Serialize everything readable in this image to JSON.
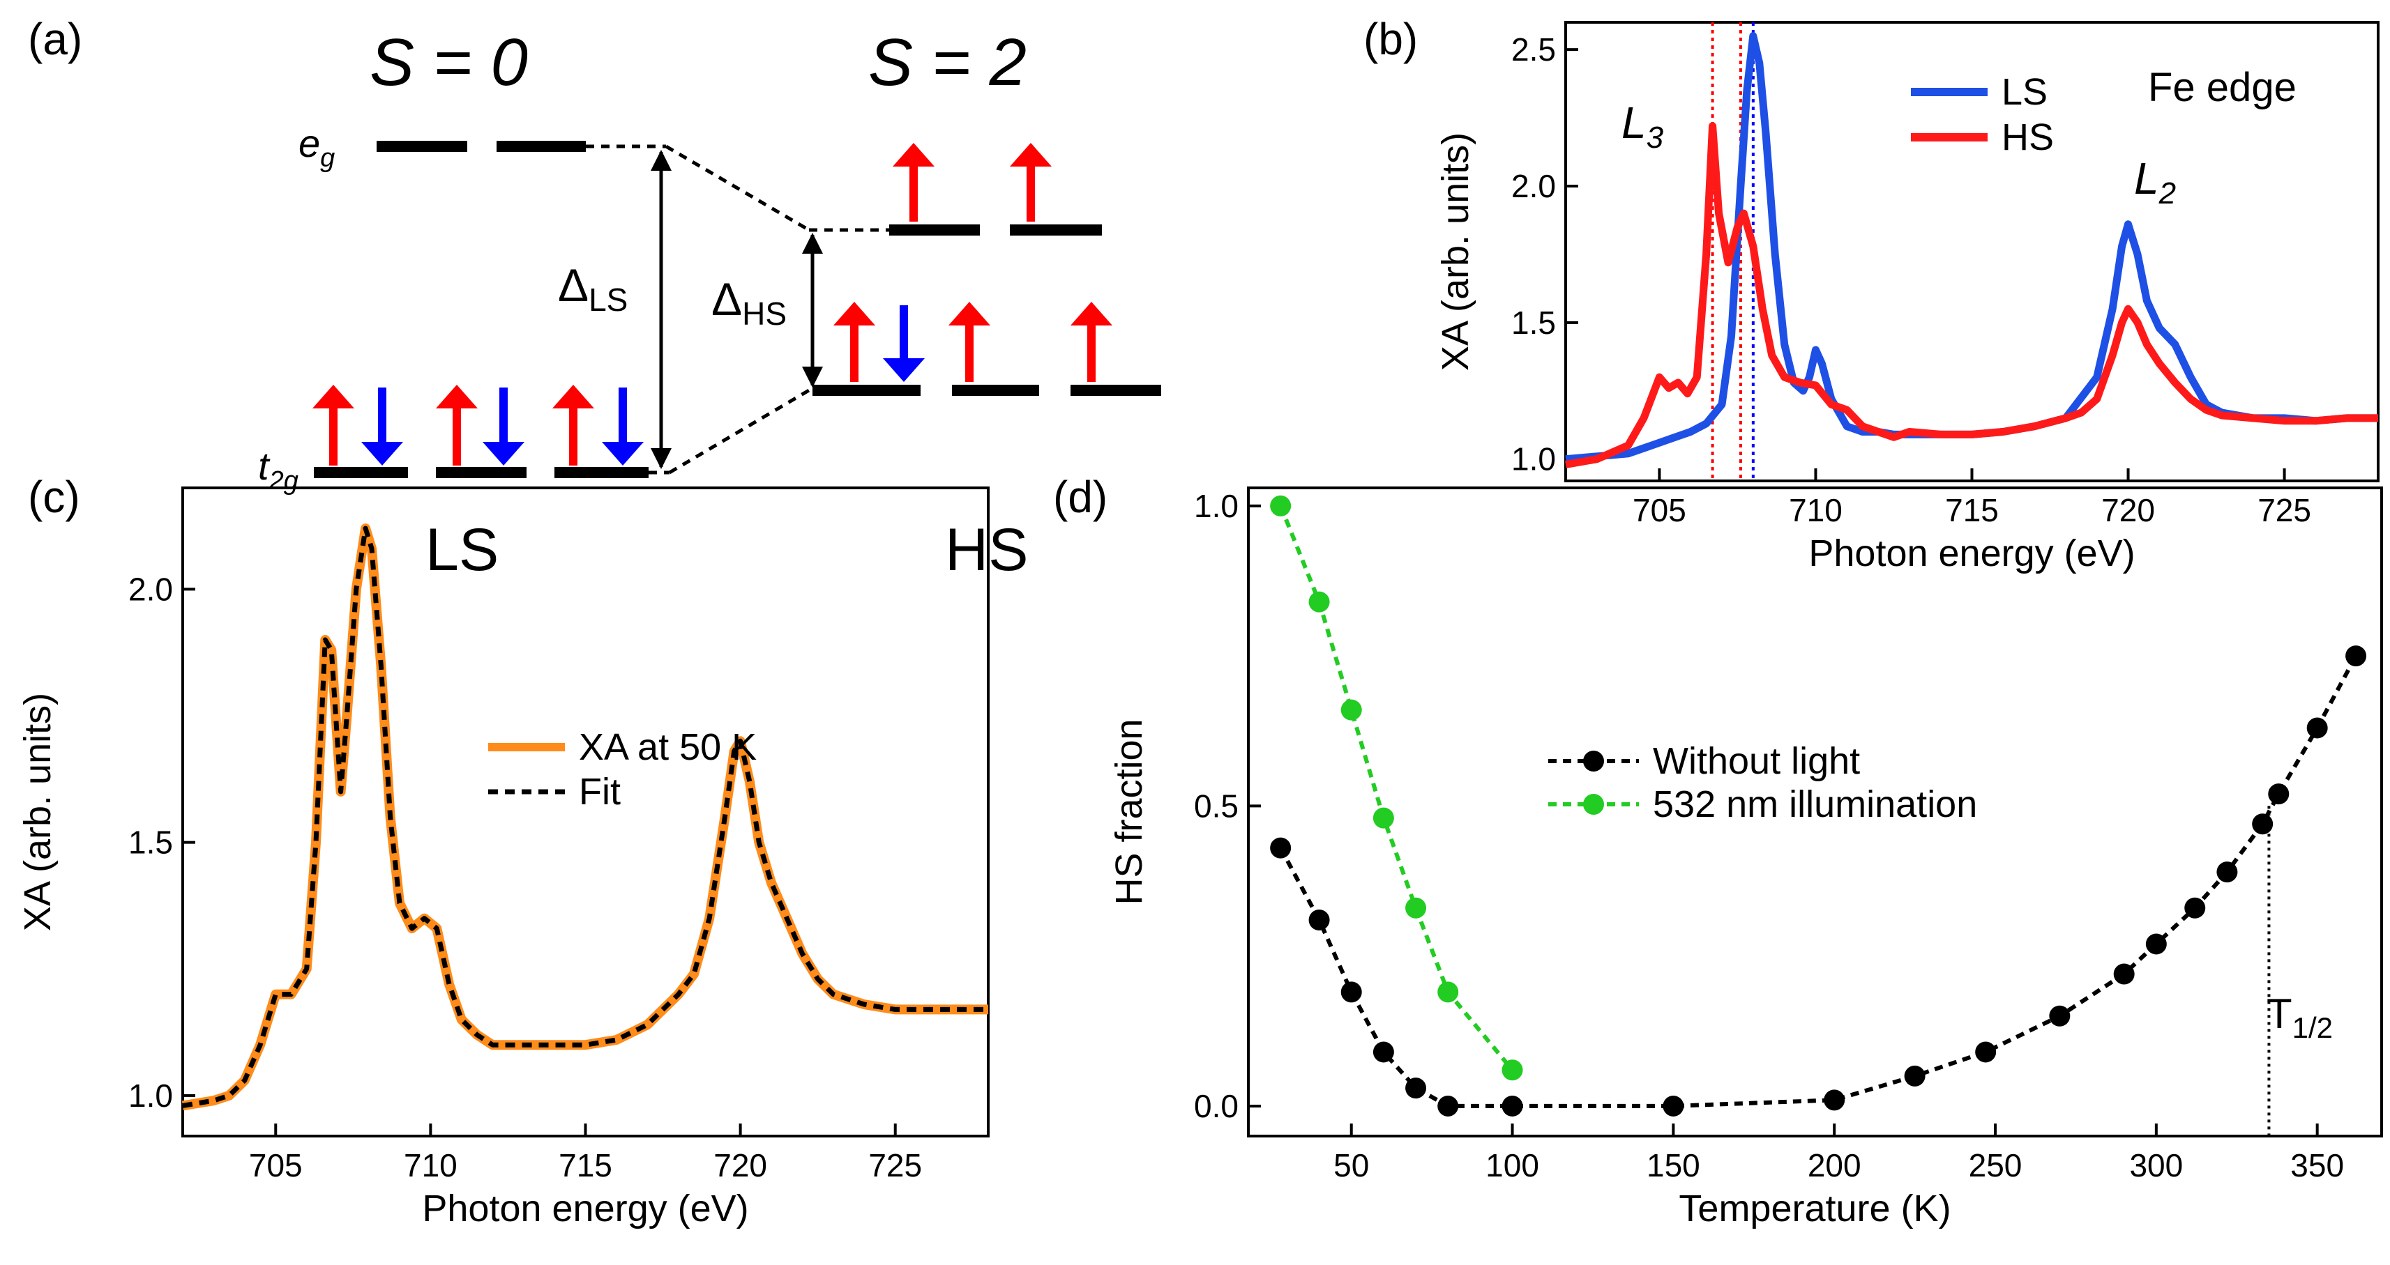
{
  "panels": {
    "a": {
      "label": "(a)",
      "s0": "S = 0",
      "s2": "S = 2",
      "eg": "e",
      "eg_sub": "g",
      "t2g": "t",
      "t2g_sub": "2g",
      "delta": "Δ",
      "ls_sub": "LS",
      "hs_sub": "HS",
      "ls_label": "LS",
      "hs_label": "HS",
      "colors": {
        "up": "#ff0000",
        "down": "#0000ff",
        "level": "#000000"
      }
    },
    "b": {
      "label": "(b)",
      "edge": "Fe edge",
      "l3": "L",
      "l3_sub": "3",
      "l2": "L",
      "l2_sub": "2"
    },
    "c": {
      "label": "(c)"
    },
    "d": {
      "label": "(d)",
      "t_half": "T",
      "t_half_sub": "1/2"
    }
  },
  "chart_data": [
    {
      "id": "b",
      "type": "line",
      "xlabel": "Photon energy (eV)",
      "ylabel": "XA (arb. units)",
      "xlim": [
        702,
        728
      ],
      "ylim": [
        0.92,
        2.6
      ],
      "xticks": [
        705,
        710,
        715,
        720,
        725
      ],
      "yticks": [
        1.0,
        1.5,
        2.0,
        2.5
      ],
      "ytick_labels": [
        "1.0",
        "1.5",
        "2.0",
        "2.5"
      ],
      "vlines": [
        {
          "x": 706.7,
          "color": "#ff0000"
        },
        {
          "x": 707.6,
          "color": "#ff0000"
        },
        {
          "x": 708.0,
          "color": "#0000ff"
        }
      ],
      "series": [
        {
          "name": "LS",
          "color": "#1e50e6",
          "style": "solid",
          "x": [
            702,
            703,
            704,
            704.5,
            705,
            705.5,
            706,
            706.5,
            707,
            707.3,
            707.6,
            707.8,
            708,
            708.2,
            708.4,
            708.7,
            709,
            709.3,
            709.6,
            709.8,
            710,
            710.2,
            710.5,
            711,
            711.5,
            712,
            712.5,
            713,
            714,
            715,
            716,
            717,
            718,
            719,
            719.5,
            719.8,
            720,
            720.3,
            720.6,
            721,
            721.5,
            722,
            722.5,
            723,
            724,
            725,
            726,
            727,
            728
          ],
          "y": [
            1.0,
            1.01,
            1.02,
            1.04,
            1.06,
            1.08,
            1.1,
            1.13,
            1.2,
            1.45,
            2.0,
            2.35,
            2.55,
            2.45,
            2.2,
            1.75,
            1.42,
            1.28,
            1.25,
            1.3,
            1.4,
            1.35,
            1.22,
            1.12,
            1.1,
            1.1,
            1.09,
            1.09,
            1.09,
            1.09,
            1.1,
            1.12,
            1.15,
            1.3,
            1.55,
            1.78,
            1.86,
            1.75,
            1.58,
            1.48,
            1.42,
            1.3,
            1.2,
            1.17,
            1.15,
            1.15,
            1.14,
            1.15,
            1.15
          ]
        },
        {
          "name": "HS",
          "color": "#ff1a1a",
          "style": "solid",
          "x": [
            702,
            703,
            704,
            704.5,
            705,
            705.3,
            705.6,
            705.9,
            706.2,
            706.5,
            706.7,
            706.9,
            707.2,
            707.5,
            707.7,
            708,
            708.3,
            708.6,
            709,
            709.5,
            710,
            710.5,
            711,
            711.5,
            712,
            712.5,
            713,
            714,
            715,
            716,
            717,
            718,
            718.5,
            719,
            719.5,
            719.8,
            720,
            720.3,
            720.6,
            721,
            721.5,
            722,
            722.5,
            723,
            724,
            725,
            726,
            727,
            728
          ],
          "y": [
            0.98,
            1.0,
            1.05,
            1.15,
            1.3,
            1.26,
            1.28,
            1.24,
            1.3,
            1.75,
            2.22,
            1.9,
            1.72,
            1.85,
            1.9,
            1.78,
            1.55,
            1.38,
            1.3,
            1.28,
            1.27,
            1.2,
            1.18,
            1.12,
            1.1,
            1.08,
            1.1,
            1.09,
            1.09,
            1.1,
            1.12,
            1.15,
            1.17,
            1.22,
            1.38,
            1.5,
            1.55,
            1.5,
            1.42,
            1.35,
            1.28,
            1.22,
            1.18,
            1.16,
            1.15,
            1.14,
            1.14,
            1.15,
            1.15
          ]
        }
      ]
    },
    {
      "id": "c",
      "type": "line",
      "xlabel": "Photon energy (eV)",
      "ylabel": "XA (arb. units)",
      "xlim": [
        702,
        728
      ],
      "ylim": [
        0.92,
        2.2
      ],
      "xticks": [
        705,
        710,
        715,
        720,
        725
      ],
      "yticks": [
        1.0,
        1.5,
        2.0
      ],
      "ytick_labels": [
        "1.0",
        "1.5",
        "2.0"
      ],
      "series": [
        {
          "name": "XA at 50 K",
          "color": "#ff8c1a",
          "style": "solid",
          "x": [
            702,
            703,
            703.5,
            704,
            704.5,
            705,
            705.5,
            706,
            706.3,
            706.6,
            706.8,
            707.1,
            707.3,
            707.6,
            707.9,
            708.1,
            708.4,
            708.7,
            709,
            709.4,
            709.8,
            710.2,
            710.6,
            711,
            711.5,
            712,
            712.5,
            713,
            714,
            715,
            716,
            717,
            718,
            718.5,
            719,
            719.5,
            719.8,
            720,
            720.3,
            720.6,
            721,
            721.5,
            722,
            722.5,
            723,
            724,
            725,
            726,
            727,
            728
          ],
          "y": [
            0.98,
            0.99,
            1.0,
            1.03,
            1.1,
            1.2,
            1.2,
            1.25,
            1.5,
            1.9,
            1.88,
            1.6,
            1.75,
            2.0,
            2.12,
            2.08,
            1.85,
            1.55,
            1.38,
            1.33,
            1.35,
            1.33,
            1.22,
            1.15,
            1.12,
            1.1,
            1.1,
            1.1,
            1.1,
            1.1,
            1.11,
            1.14,
            1.2,
            1.24,
            1.35,
            1.55,
            1.68,
            1.7,
            1.62,
            1.5,
            1.42,
            1.35,
            1.28,
            1.23,
            1.2,
            1.18,
            1.17,
            1.17,
            1.17,
            1.17
          ]
        },
        {
          "name": "Fit",
          "color": "#000000",
          "style": "dashed",
          "x": [
            702,
            703,
            703.5,
            704,
            704.5,
            705,
            705.5,
            706,
            706.3,
            706.6,
            706.8,
            707.1,
            707.3,
            707.6,
            707.9,
            708.1,
            708.4,
            708.7,
            709,
            709.4,
            709.8,
            710.2,
            710.6,
            711,
            711.5,
            712,
            712.5,
            713,
            714,
            715,
            716,
            717,
            718,
            718.5,
            719,
            719.5,
            719.8,
            720,
            720.3,
            720.6,
            721,
            721.5,
            722,
            722.5,
            723,
            724,
            725,
            726,
            727,
            728
          ],
          "y": [
            0.98,
            0.99,
            1.0,
            1.03,
            1.1,
            1.2,
            1.2,
            1.25,
            1.5,
            1.9,
            1.88,
            1.6,
            1.75,
            2.0,
            2.12,
            2.08,
            1.85,
            1.55,
            1.38,
            1.33,
            1.35,
            1.33,
            1.22,
            1.15,
            1.12,
            1.1,
            1.1,
            1.1,
            1.1,
            1.1,
            1.11,
            1.14,
            1.2,
            1.24,
            1.35,
            1.55,
            1.68,
            1.7,
            1.62,
            1.5,
            1.42,
            1.35,
            1.28,
            1.23,
            1.2,
            1.18,
            1.17,
            1.17,
            1.17,
            1.17
          ]
        }
      ]
    },
    {
      "id": "d",
      "type": "scatter",
      "xlabel": "Temperature (K)",
      "ylabel": "HS fraction",
      "xlim": [
        18,
        370
      ],
      "ylim": [
        -0.05,
        1.03
      ],
      "xticks": [
        50,
        100,
        150,
        200,
        250,
        300,
        350
      ],
      "yticks": [
        0.0,
        0.5,
        1.0
      ],
      "ytick_labels": [
        "0.0",
        "0.5",
        "1.0"
      ],
      "t_half_x": 335,
      "series": [
        {
          "name": "Without light",
          "color": "#000000",
          "x": [
            28,
            40,
            50,
            60,
            70,
            80,
            100,
            150,
            200,
            225,
            247,
            270,
            290,
            300,
            312,
            322,
            333,
            338,
            350,
            362
          ],
          "y": [
            0.43,
            0.31,
            0.19,
            0.09,
            0.03,
            0.0,
            0.0,
            0.0,
            0.01,
            0.05,
            0.09,
            0.15,
            0.22,
            0.27,
            0.33,
            0.39,
            0.47,
            0.52,
            0.63,
            0.75
          ]
        },
        {
          "name": "532 nm illumination",
          "color": "#22cc22",
          "x": [
            28,
            40,
            50,
            60,
            70,
            80,
            100
          ],
          "y": [
            1.0,
            0.84,
            0.66,
            0.48,
            0.33,
            0.19,
            0.06
          ]
        }
      ]
    }
  ]
}
